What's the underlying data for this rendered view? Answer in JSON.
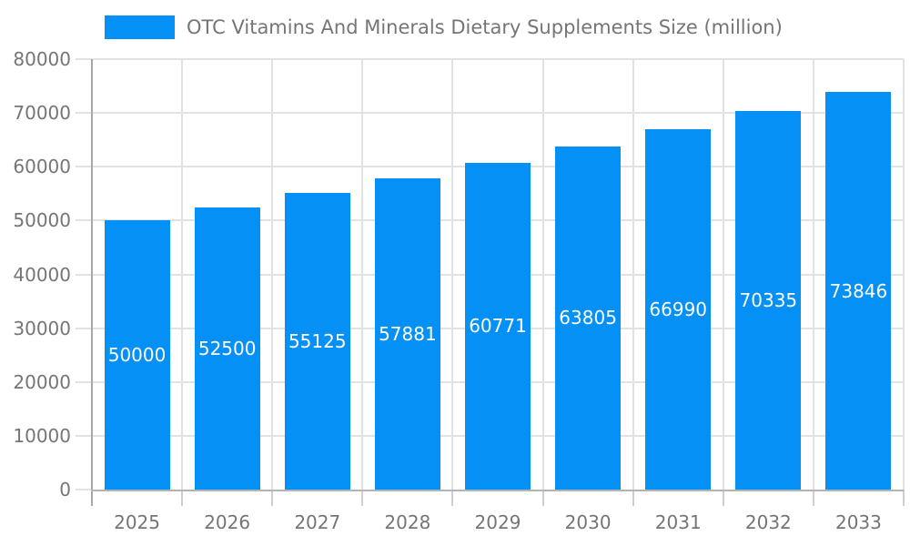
{
  "chart_data": {
    "type": "bar",
    "title": "OTC Vitamins And Minerals Dietary Supplements Size (million)",
    "legend": {
      "label": "OTC Vitamins And Minerals Dietary Supplements Size (million)",
      "position": "top"
    },
    "categories": [
      "2025",
      "2026",
      "2027",
      "2028",
      "2029",
      "2030",
      "2031",
      "2032",
      "2033"
    ],
    "values": [
      50000,
      52500,
      55125,
      57881,
      60771,
      63805,
      66990,
      70335,
      73846
    ],
    "xlabel": "",
    "ylabel": "",
    "ylim": [
      0,
      80000
    ],
    "ytick_step": 10000,
    "yticks": [
      0,
      10000,
      20000,
      30000,
      40000,
      50000,
      60000,
      70000,
      80000
    ],
    "grid": {
      "horizontal": true,
      "vertical": true
    },
    "value_labels": "inside-center",
    "colors": {
      "bar": "#0590F5",
      "value_label": "#ffffff",
      "axis_label": "#757575",
      "grid_line": "#e2e2e2",
      "tick_line": "#cfcfcf",
      "y_axis_line": "#a8a8a8",
      "x_axis_line": "#b3b3b3",
      "background": "#ffffff"
    }
  }
}
